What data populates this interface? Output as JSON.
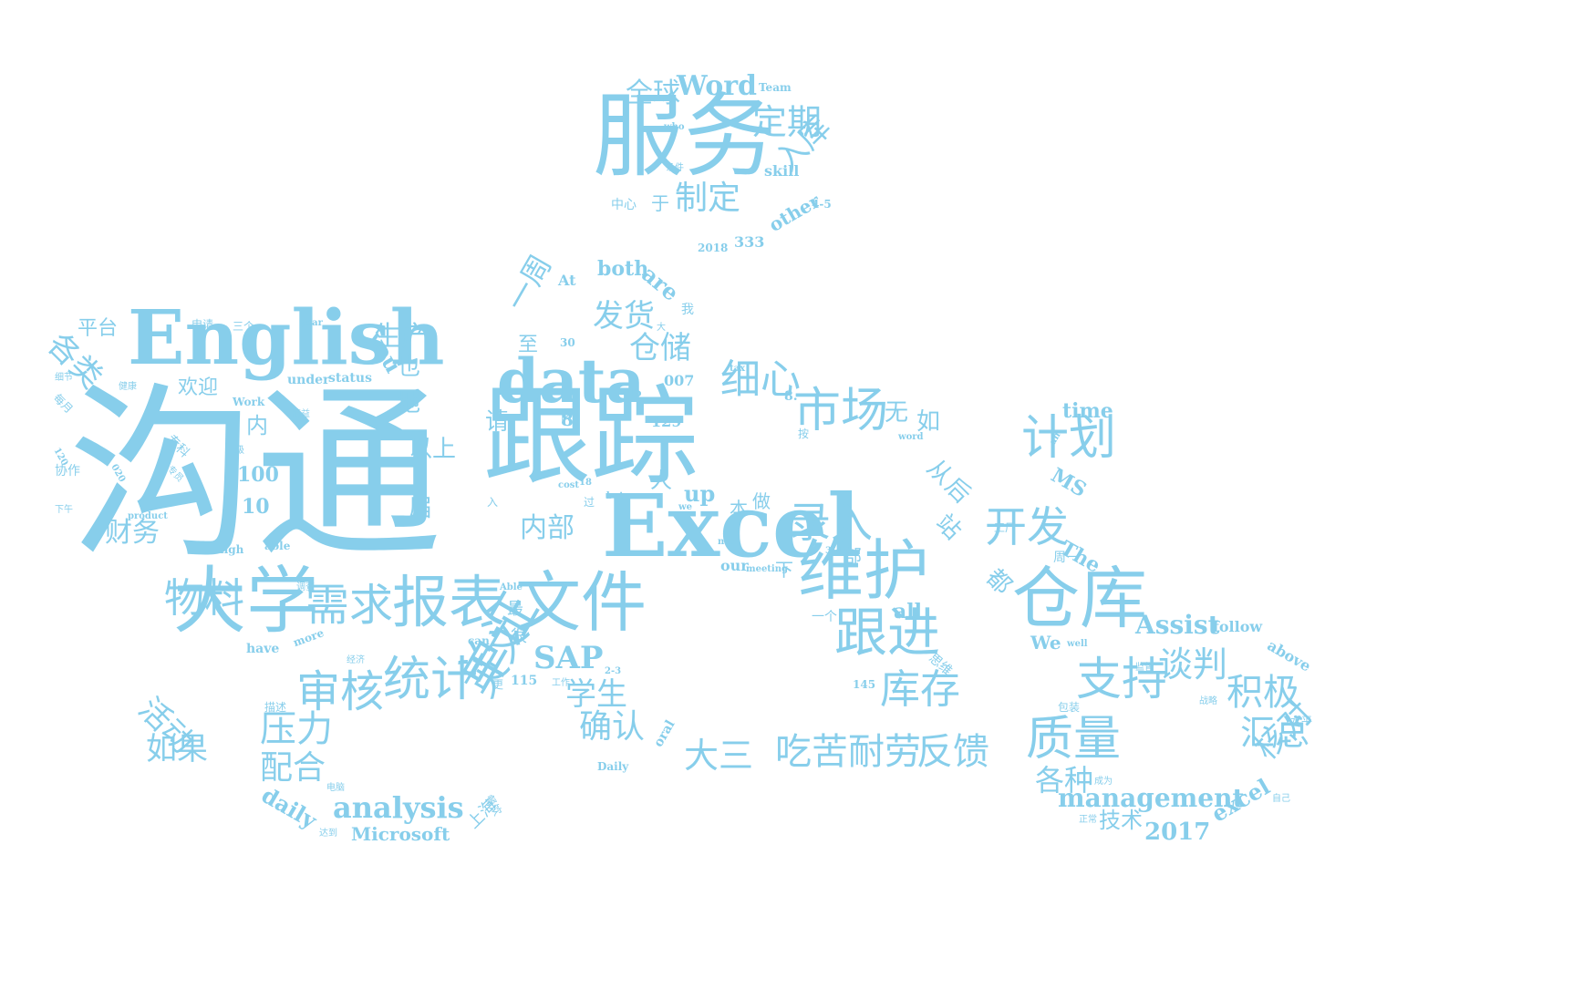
{
  "color": "#87CEEB",
  "words": [
    {
      "text": "沟通"
    },
    {
      "text": "English"
    },
    {
      "text": "跟踪"
    },
    {
      "text": "服务"
    },
    {
      "text": "Excel"
    },
    {
      "text": "data"
    },
    {
      "text": "维护"
    },
    {
      "text": "文件"
    },
    {
      "text": "大学"
    },
    {
      "text": "报表"
    },
    {
      "text": "仓库"
    },
    {
      "text": "跟进"
    },
    {
      "text": "计划"
    },
    {
      "text": "需求"
    },
    {
      "text": "市场"
    },
    {
      "text": "统计"
    },
    {
      "text": "审核"
    },
    {
      "text": "单证"
    },
    {
      "text": "录入"
    },
    {
      "text": "开发"
    },
    {
      "text": "支持"
    },
    {
      "text": "质量"
    },
    {
      "text": "细心"
    },
    {
      "text": "英文"
    },
    {
      "text": "物料"
    },
    {
      "text": "库存"
    },
    {
      "text": "吃苦耐劳"
    },
    {
      "text": "反馈"
    },
    {
      "text": "积极"
    },
    {
      "text": "谈判"
    },
    {
      "text": "汇总"
    },
    {
      "text": "定期"
    },
    {
      "text": "入库"
    },
    {
      "text": "制定"
    },
    {
      "text": "全球"
    },
    {
      "text": "发货"
    },
    {
      "text": "仓储"
    },
    {
      "text": "一周"
    },
    {
      "text": "确认"
    },
    {
      "text": "学生"
    },
    {
      "text": "大三"
    },
    {
      "text": "压力"
    },
    {
      "text": "配合"
    },
    {
      "text": "如果"
    },
    {
      "text": "活动"
    },
    {
      "text": "各类"
    },
    {
      "text": "财务"
    },
    {
      "text": "生产"
    },
    {
      "text": "内部"
    },
    {
      "text": "核对"
    },
    {
      "text": "各种"
    },
    {
      "text": "技术"
    },
    {
      "text": "management"
    },
    {
      "text": "analysis"
    },
    {
      "text": "SAP"
    },
    {
      "text": "Word"
    },
    {
      "text": "Assist"
    },
    {
      "text": "2017"
    },
    {
      "text": "excel"
    },
    {
      "text": "Microsoft"
    },
    {
      "text": "daily"
    },
    {
      "text": "time"
    },
    {
      "text": "MS"
    },
    {
      "text": "up"
    },
    {
      "text": "both"
    },
    {
      "text": "are"
    },
    {
      "text": "other"
    },
    {
      "text": "skill"
    },
    {
      "text": "all"
    },
    {
      "text": "you"
    },
    {
      "text": "上海"
    },
    {
      "text": "平台"
    },
    {
      "text": "欢迎"
    },
    {
      "text": "以上"
    },
    {
      "text": "届"
    },
    {
      "text": "100"
    },
    {
      "text": "10"
    },
    {
      "text": "人"
    },
    {
      "text": "如"
    },
    {
      "text": "无"
    },
    {
      "text": "从"
    },
    {
      "text": "后"
    },
    {
      "text": "站"
    },
    {
      "text": "都"
    },
    {
      "text": "请"
    },
    {
      "text": "也"
    },
    {
      "text": "地"
    },
    {
      "text": "内"
    },
    {
      "text": "The"
    },
    {
      "text": "follow"
    },
    {
      "text": "above"
    },
    {
      "text": "We"
    },
    {
      "text": "have"
    },
    {
      "text": "more"
    },
    {
      "text": "can"
    },
    {
      "text": "115"
    },
    {
      "text": "145"
    },
    {
      "text": "333"
    },
    {
      "text": "2018"
    },
    {
      "text": "4-5"
    },
    {
      "text": "Team"
    },
    {
      "text": "who"
    },
    {
      "text": "At"
    },
    {
      "text": "Daily"
    },
    {
      "text": "oral"
    },
    {
      "text": "under"
    },
    {
      "text": "status"
    },
    {
      "text": "Work"
    },
    {
      "text": "year"
    },
    {
      "text": "high"
    },
    {
      "text": "able"
    },
    {
      "text": "product"
    },
    {
      "text": "our"
    },
    {
      "text": "meeting"
    },
    {
      "text": "not"
    },
    {
      "text": "we"
    },
    {
      "text": "cost"
    },
    {
      "text": "but"
    },
    {
      "text": "word"
    },
    {
      "text": "an"
    },
    {
      "text": "tax"
    },
    {
      "text": "well"
    },
    {
      "text": "Able"
    },
    {
      "text": "To"
    },
    {
      "text": "007"
    },
    {
      "text": "129"
    },
    {
      "text": "8"
    },
    {
      "text": "8."
    },
    {
      "text": "30"
    },
    {
      "text": "18"
    },
    {
      "text": "120"
    },
    {
      "text": "020"
    },
    {
      "text": "3-4"
    },
    {
      "text": "2-3"
    },
    {
      "text": "中心"
    },
    {
      "text": "条件"
    },
    {
      "text": "申请"
    },
    {
      "text": "三个"
    },
    {
      "text": "健康"
    },
    {
      "text": "细节"
    },
    {
      "text": "每月"
    },
    {
      "text": "协作"
    },
    {
      "text": "专科"
    },
    {
      "text": "专员"
    },
    {
      "text": "下午"
    },
    {
      "text": "精益"
    },
    {
      "text": "级"
    },
    {
      "text": "经济"
    },
    {
      "text": "调查"
    },
    {
      "text": "电脑"
    },
    {
      "text": "餐饮"
    },
    {
      "text": "达到"
    },
    {
      "text": "描述"
    },
    {
      "text": "工厂"
    },
    {
      "text": "周一"
    },
    {
      "text": "一个"
    },
    {
      "text": "思维"
    },
    {
      "text": "监督"
    },
    {
      "text": "战略"
    },
    {
      "text": "水平"
    },
    {
      "text": "自己"
    },
    {
      "text": "正常"
    },
    {
      "text": "成为"
    },
    {
      "text": "包装"
    },
    {
      "text": "做"
    },
    {
      "text": "本"
    },
    {
      "text": "部"
    },
    {
      "text": "下"
    },
    {
      "text": "很"
    },
    {
      "text": "最"
    },
    {
      "text": "更"
    },
    {
      "text": "工作"
    },
    {
      "text": "至"
    },
    {
      "text": "我"
    },
    {
      "text": "大"
    },
    {
      "text": "岗"
    },
    {
      "text": "过"
    },
    {
      "text": "入"
    },
    {
      "text": "按"
    },
    {
      "text": "于"
    }
  ]
}
